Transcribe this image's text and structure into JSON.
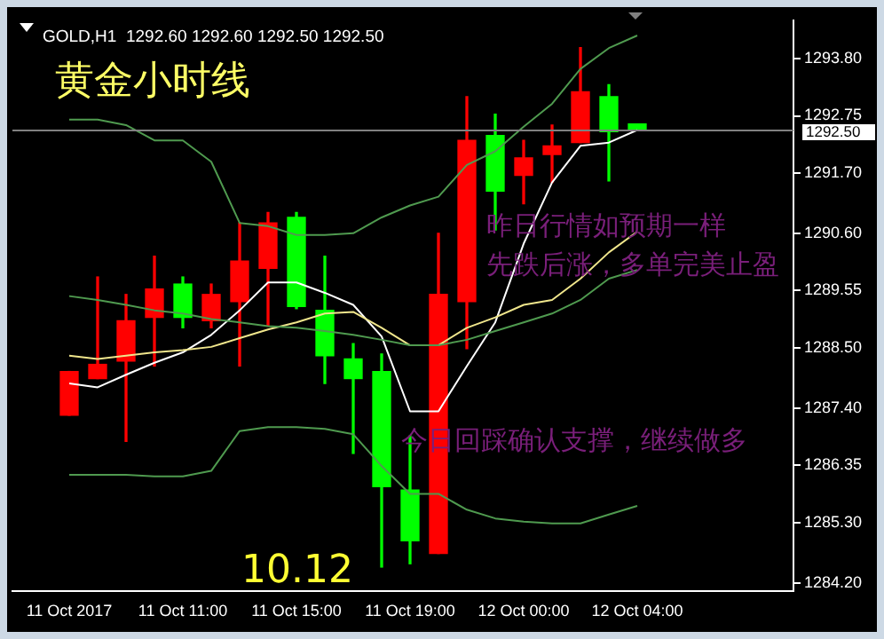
{
  "chart_data": {
    "type": "candlestick",
    "title": "GOLD,H1  1292.60 1292.60 1292.50 1292.50",
    "subtitle": "黄金小时线",
    "annotations": [
      "昨日行情如预期一样",
      "先跌后涨，多单完美止盈",
      "今日回踩确认支撑，继续做多",
      "10.12"
    ],
    "categories": [
      "11 Oct 2017",
      null,
      null,
      null,
      "11 Oct 11:00",
      null,
      null,
      null,
      "11 Oct 15:00",
      null,
      null,
      null,
      "11 Oct 19:00",
      null,
      null,
      null,
      "12 Oct 00:00",
      null,
      null,
      null,
      "12 Oct 04:00"
    ],
    "ohlc": [
      [
        1287.27,
        1288.07,
        1287.27,
        1288.07
      ],
      [
        1287.94,
        1289.8,
        1287.94,
        1288.2
      ],
      [
        1288.26,
        1289.48,
        1286.79,
        1289.0
      ],
      [
        1289.06,
        1290.18,
        1288.17,
        1289.58
      ],
      [
        1289.67,
        1289.8,
        1288.87,
        1289.06
      ],
      [
        1289.0,
        1289.67,
        1288.87,
        1289.48
      ],
      [
        1289.35,
        1290.79,
        1288.17,
        1290.09
      ],
      [
        1289.96,
        1290.98,
        1288.9,
        1290.79
      ],
      [
        1290.89,
        1290.98,
        1289.22,
        1289.26
      ],
      [
        1289.19,
        1290.18,
        1287.85,
        1288.36
      ],
      [
        1288.3,
        1288.58,
        1286.57,
        1287.94
      ],
      [
        1288.07,
        1288.39,
        1284.49,
        1285.96
      ],
      [
        1285.9,
        1286.89,
        1284.55,
        1284.97
      ],
      [
        1284.74,
        1290.6,
        1284.74,
        1289.48
      ],
      [
        1289.35,
        1293.1,
        1288.49,
        1292.3
      ],
      [
        1292.39,
        1292.78,
        1290.66,
        1291.37
      ],
      [
        1291.66,
        1292.3,
        1291.14,
        1291.98
      ],
      [
        1292.04,
        1292.58,
        1291.53,
        1292.2
      ],
      [
        1292.26,
        1294.0,
        1292.26,
        1293.19
      ],
      [
        1293.1,
        1293.32,
        1291.56,
        1292.46
      ],
      [
        1292.6,
        1292.6,
        1292.5,
        1292.5
      ]
    ],
    "colors": [
      "#ff0000",
      "#ff0000",
      "#ff0000",
      "#ff0000",
      "#00ff00",
      "#ff0000",
      "#ff0000",
      "#ff0000",
      "#00ff00",
      "#00ff00",
      "#00ff00",
      "#00ff00",
      "#00ff00",
      "#ff0000",
      "#ff0000",
      "#00ff00",
      "#ff0000",
      "#ff0000",
      "#ff0000",
      "#00ff00",
      "#00ff00"
    ],
    "series": [
      {
        "type": "line",
        "color": "#4f9a4f",
        "values": [
          1292.68,
          1292.68,
          1292.58,
          1292.3,
          1292.3,
          1291.91,
          1290.79,
          1290.73,
          1290.57,
          1290.57,
          1290.6,
          1290.89,
          1291.11,
          1291.27,
          1291.85,
          1292.1,
          1292.55,
          1292.97,
          1293.61,
          1293.99,
          1294.22
        ]
      },
      {
        "type": "line",
        "color": "#4f9a4f",
        "values": [
          1289.45,
          1289.38,
          1289.29,
          1289.19,
          1289.13,
          1289.03,
          1288.97,
          1288.9,
          1288.87,
          1288.81,
          1288.74,
          1288.65,
          1288.55,
          1288.55,
          1288.65,
          1288.81,
          1288.97,
          1289.13,
          1289.38,
          1289.77,
          1289.93
        ]
      },
      {
        "type": "line",
        "color": "#4f9a4f",
        "values": [
          1286.18,
          1286.18,
          1286.18,
          1286.15,
          1286.15,
          1286.25,
          1286.98,
          1287.05,
          1287.05,
          1287.02,
          1286.92,
          1286.34,
          1285.83,
          1285.83,
          1285.54,
          1285.38,
          1285.32,
          1285.29,
          1285.29,
          1285.45,
          1285.61
        ]
      },
      {
        "type": "line",
        "color": "#f0e68c",
        "values": [
          1288.36,
          1288.3,
          1288.36,
          1288.42,
          1288.46,
          1288.52,
          1288.68,
          1288.84,
          1288.97,
          1289.13,
          1289.16,
          1288.87,
          1288.55,
          1288.55,
          1288.87,
          1289.06,
          1289.29,
          1289.38,
          1289.77,
          1290.25,
          1290.63
        ]
      },
      {
        "type": "line",
        "color": "#ffffff",
        "values": [
          1287.85,
          1287.78,
          1288.01,
          1288.23,
          1288.42,
          1288.74,
          1289.19,
          1289.7,
          1289.7,
          1289.51,
          1289.29,
          1288.71,
          1287.34,
          1287.34,
          1288.17,
          1288.97,
          1290.41,
          1291.53,
          1292.2,
          1292.26,
          1292.49
        ]
      }
    ],
    "ylim": [
      1284.05,
      1294.5
    ],
    "yticks": [
      {
        "value": 1284.2,
        "label": "1284.20"
      },
      {
        "value": 1285.3,
        "label": "1285.30"
      },
      {
        "value": 1286.35,
        "label": "1286.35"
      },
      {
        "value": 1287.4,
        "label": "1287.40"
      },
      {
        "value": 1288.5,
        "label": "1288.50"
      },
      {
        "value": 1289.55,
        "label": "1289.55"
      },
      {
        "value": 1290.6,
        "label": "1290.60"
      },
      {
        "value": 1291.7,
        "label": "1291.70"
      },
      {
        "value": 1292.75,
        "label": "1292.75"
      },
      {
        "value": 1293.8,
        "label": "1293.80"
      }
    ],
    "ref_lines": [
      {
        "axis": "y",
        "value": 1292.5,
        "label": "1292.50",
        "color": "#808080"
      }
    ],
    "grid": false,
    "legend": false
  }
}
